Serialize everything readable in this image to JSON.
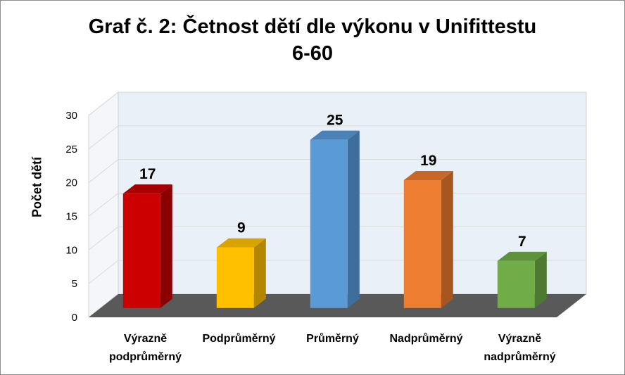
{
  "chart_data": {
    "type": "bar",
    "title_lines": [
      "Graf č. 2: Četnost dětí dle výkonu v Unifittestu",
      "6-60"
    ],
    "xlabel": "",
    "ylabel": "Počet dětí",
    "ylim": [
      0,
      30
    ],
    "yticks": [
      0,
      5,
      10,
      15,
      20,
      25,
      30
    ],
    "grid": true,
    "legend": "none",
    "categories": [
      [
        "Výrazně",
        "podprůměrný"
      ],
      [
        "Podprůměrný"
      ],
      [
        "Průměrný"
      ],
      [
        "Nadprůměrný"
      ],
      [
        "Výrazně",
        "nadprůměrný"
      ]
    ],
    "values": [
      17,
      9,
      25,
      19,
      7
    ],
    "colors": [
      {
        "front": "#cc0000",
        "side": "#8b0000",
        "top": "#a80000"
      },
      {
        "front": "#ffc000",
        "side": "#b38600",
        "top": "#d9a300"
      },
      {
        "front": "#5b9bd5",
        "side": "#3e6f9c",
        "top": "#4a82b8"
      },
      {
        "front": "#ed7d31",
        "side": "#a8561f",
        "top": "#c86828"
      },
      {
        "front": "#70ad47",
        "side": "#4d7a30",
        "top": "#5e933c"
      }
    ],
    "floor_color": "#595959",
    "wall_color": "#eaf0f8"
  }
}
